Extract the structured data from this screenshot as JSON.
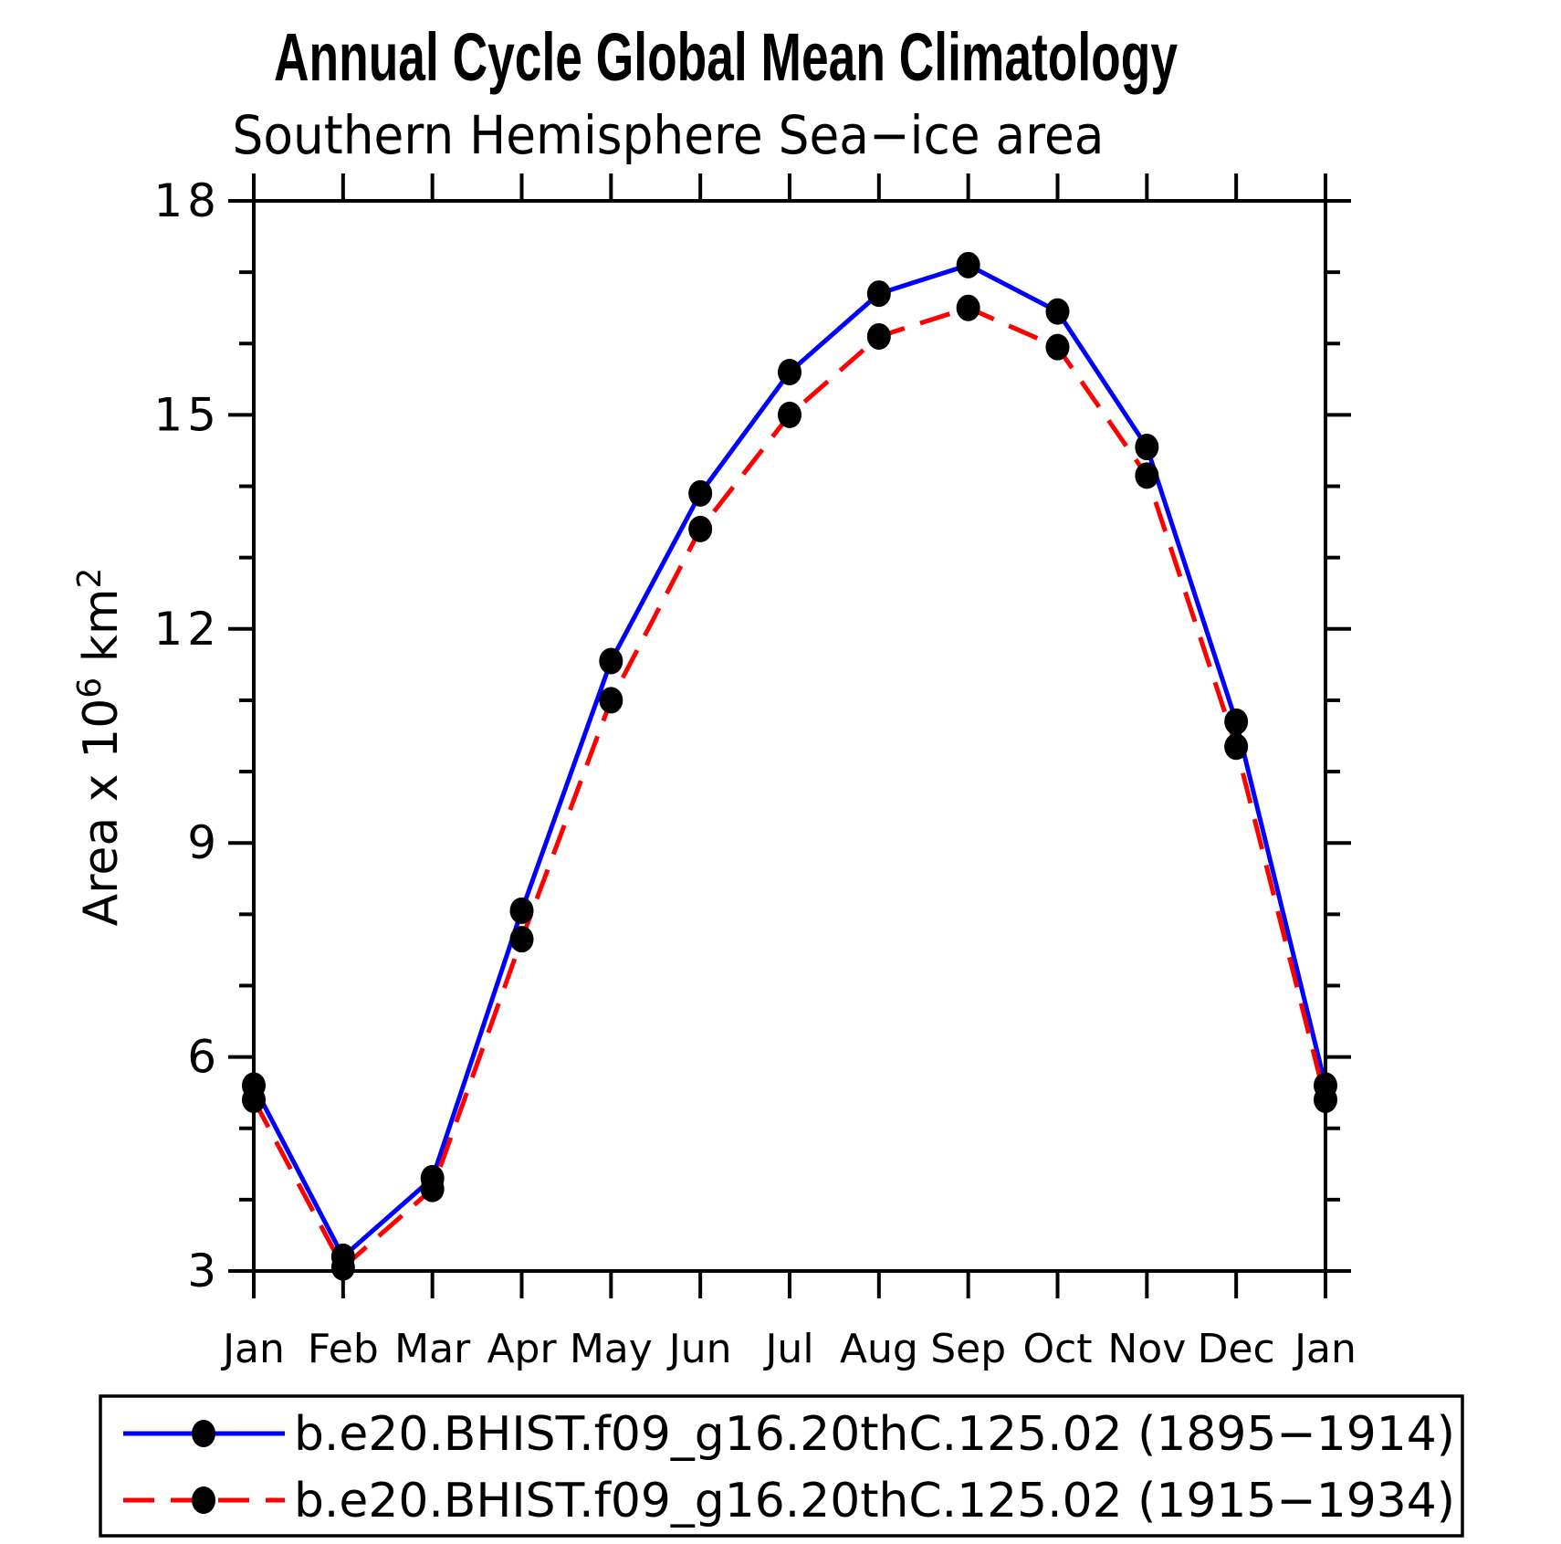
{
  "title": "Annual Cycle Global Mean Climatology",
  "subtitle": "Southern Hemisphere Sea−ice area",
  "chart_data": {
    "type": "line",
    "x_categories": [
      "Jan",
      "Feb",
      "Mar",
      "Apr",
      "May",
      "Jun",
      "Jul",
      "Aug",
      "Sep",
      "Oct",
      "Nov",
      "Dec",
      "Jan"
    ],
    "y_ticks_major": [
      3,
      6,
      9,
      12,
      15,
      18
    ],
    "y_minor_step": 1,
    "ylim": [
      3,
      18
    ],
    "ylabel": {
      "main": "Area x 10",
      "exp": "6",
      "unit": " km",
      "unit_exp": "2"
    },
    "grid": false,
    "legend_position": "bottom",
    "axis_color": "#000000",
    "series": [
      {
        "name": "b.e20.BHIST.f09_g16.20thC.125.02 (1895−1914)",
        "color": "#0000ff",
        "line_style": "solid",
        "marker": "filled-circle",
        "marker_color": "#000000",
        "values": [
          5.6,
          3.2,
          4.3,
          8.05,
          11.55,
          13.9,
          15.6,
          16.7,
          17.1,
          16.45,
          14.55,
          10.7,
          5.6
        ]
      },
      {
        "name": "b.e20.BHIST.f09_g16.20thC.125.02 (1915−1934)",
        "color": "#ff0000",
        "line_style": "dashed",
        "marker": "filled-circle",
        "marker_color": "#000000",
        "values": [
          5.4,
          3.05,
          4.15,
          7.65,
          11.0,
          13.4,
          15.0,
          16.1,
          16.5,
          15.95,
          14.15,
          10.35,
          5.4
        ]
      }
    ]
  }
}
